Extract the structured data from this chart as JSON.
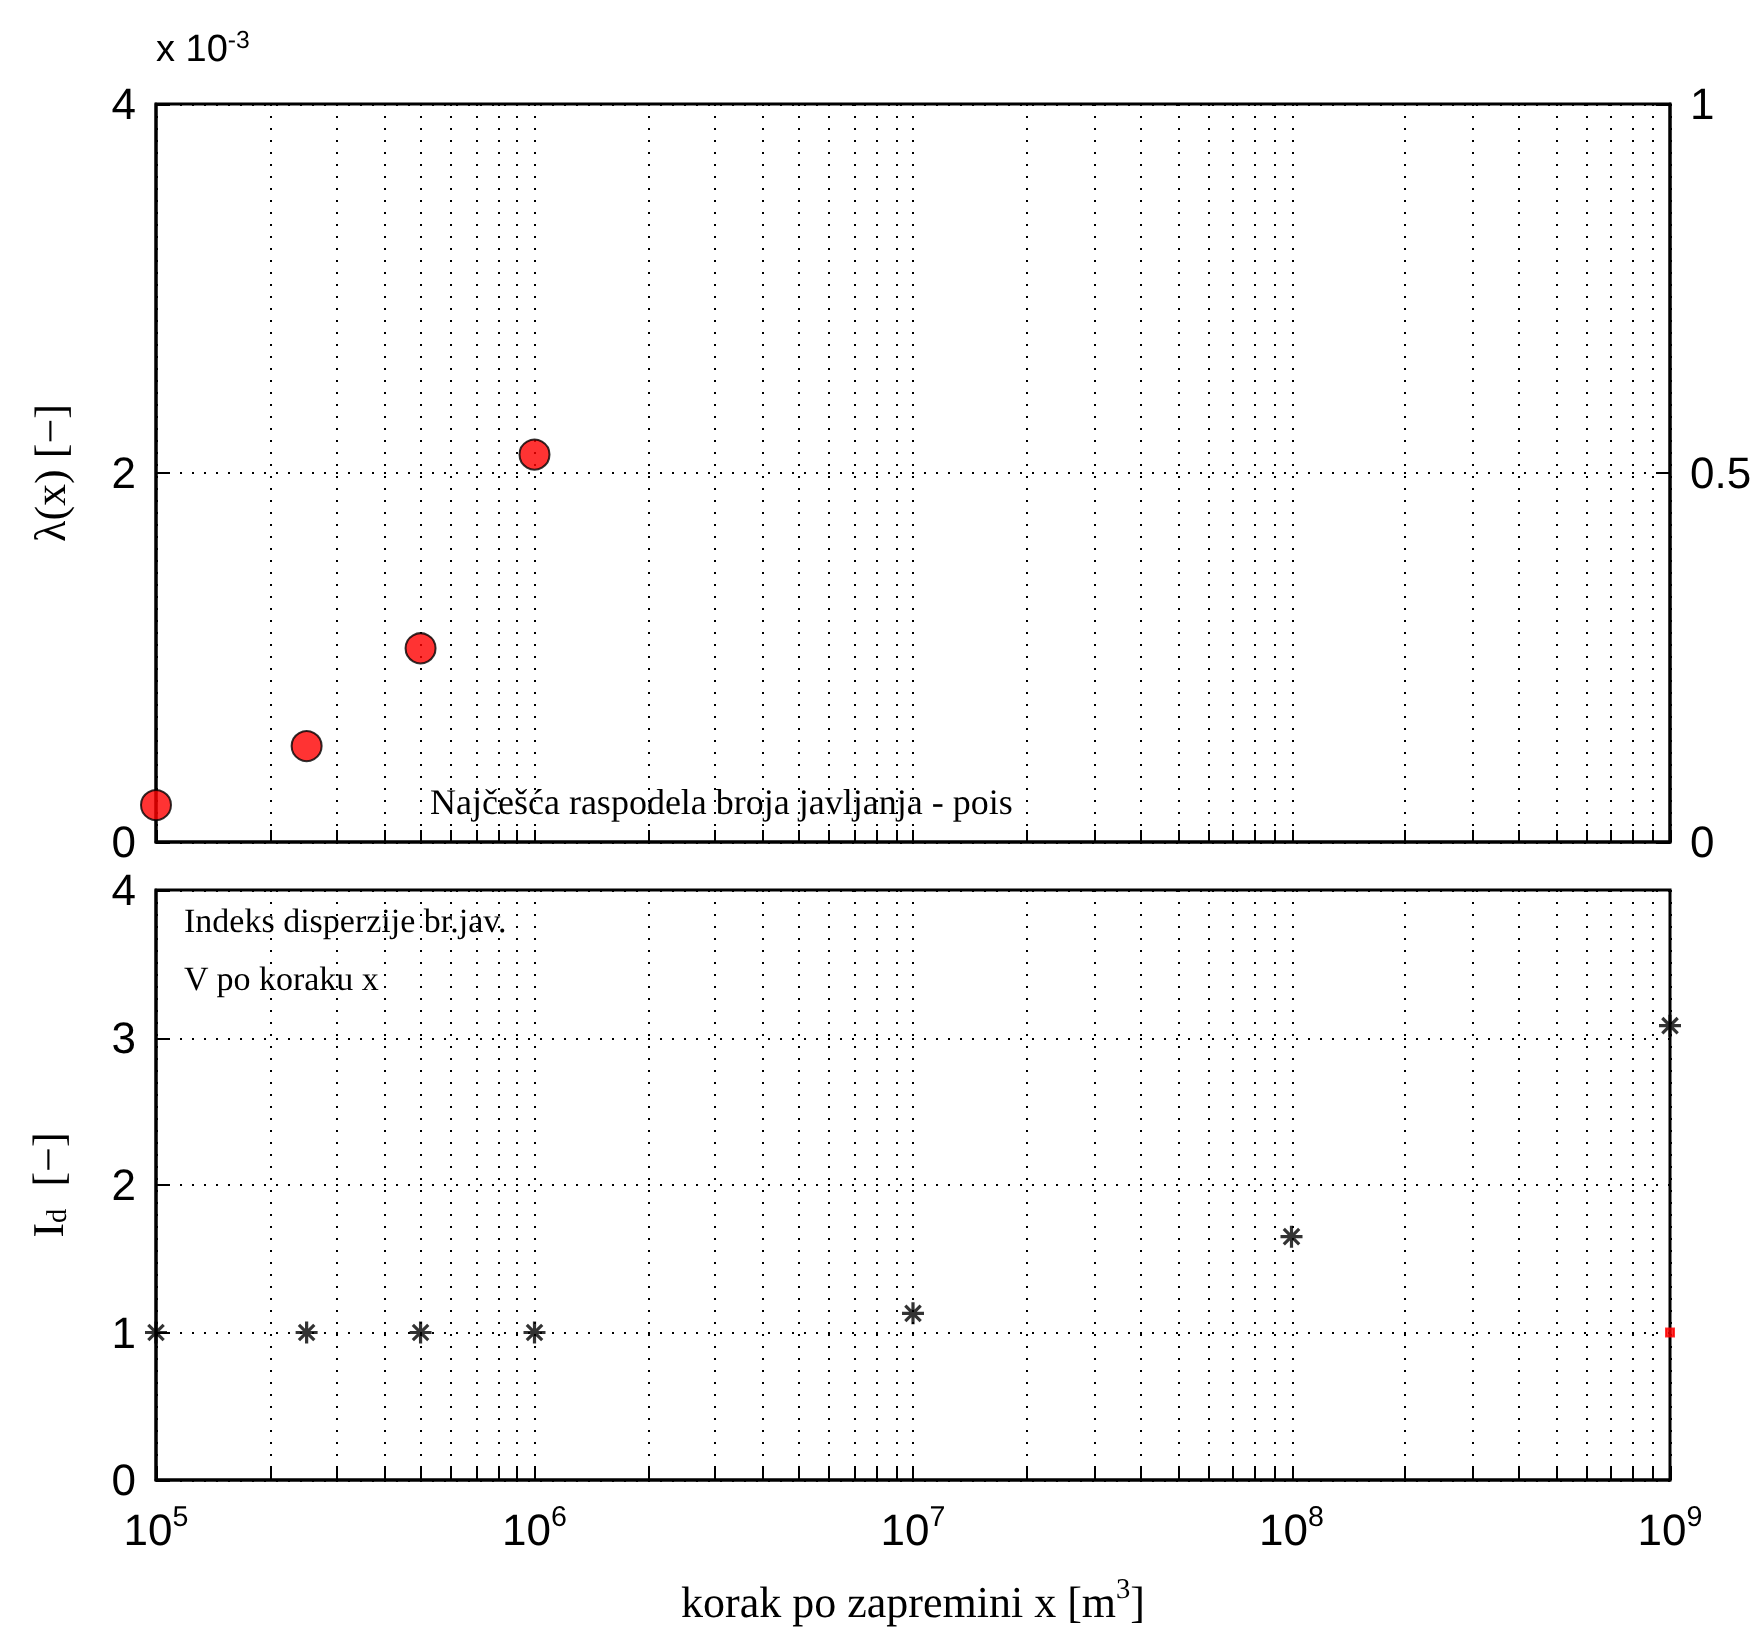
{
  "chart_data": [
    {
      "type": "scatter",
      "ylabel": "λ(x) [−]",
      "annotations": [
        "x 10$^{-3}$",
        "Najčešća raspodela broja javljanja - pois"
      ],
      "x": [
        100000,
        250000,
        500000,
        1000000
      ],
      "series": [
        {
          "color": "#ff0000",
          "values": [
            0.2,
            0.52,
            1.05,
            2.1
          ]
        }
      ],
      "marker": "circle",
      "log": "x",
      "grid": true,
      "tick_labels": "y",
      "xlim": [
        100000,
        1000000000
      ],
      "xticks": [
        {
          "value": 100000,
          "label": null
        },
        {
          "value": 200000,
          "label": null
        },
        {
          "value": 300000,
          "label": null
        },
        {
          "value": 400000,
          "label": null
        },
        {
          "value": 500000,
          "label": null
        },
        {
          "value": 600000,
          "label": null
        },
        {
          "value": 700000,
          "label": null
        },
        {
          "value": 800000,
          "label": null
        },
        {
          "value": 900000,
          "label": null
        },
        {
          "value": 1000000,
          "label": null
        },
        {
          "value": 2000000,
          "label": null
        },
        {
          "value": 3000000,
          "label": null
        },
        {
          "value": 4000000,
          "label": null
        },
        {
          "value": 5000000,
          "label": null
        },
        {
          "value": 6000000,
          "label": null
        },
        {
          "value": 7000000,
          "label": null
        },
        {
          "value": 8000000,
          "label": null
        },
        {
          "value": 9000000,
          "label": null
        },
        {
          "value": 10000000,
          "label": null
        },
        {
          "value": 20000000,
          "label": null
        },
        {
          "value": 30000000,
          "label": null
        },
        {
          "value": 40000000,
          "label": null
        },
        {
          "value": 50000000,
          "label": null
        },
        {
          "value": 60000000,
          "label": null
        },
        {
          "value": 70000000,
          "label": null
        },
        {
          "value": 80000000,
          "label": null
        },
        {
          "value": 90000000,
          "label": null
        },
        {
          "value": 100000000,
          "label": null
        },
        {
          "value": 200000000,
          "label": null
        },
        {
          "value": 300000000,
          "label": null
        },
        {
          "value": 400000000,
          "label": null
        },
        {
          "value": 500000000,
          "label": null
        },
        {
          "value": 600000000,
          "label": null
        },
        {
          "value": 700000000,
          "label": null
        },
        {
          "value": 800000000,
          "label": null
        },
        {
          "value": 900000000,
          "label": null
        },
        {
          "value": 1000000000,
          "label": null
        }
      ],
      "ylim": [
        0,
        4
      ],
      "yticks": [
        0,
        2,
        4
      ],
      "y2lim": [
        0,
        1
      ],
      "y2ticks": [
        0,
        0.5,
        1
      ]
    },
    {
      "type": "scatter",
      "xlabel": "korak po zapremini x [m$^{3}$]",
      "ylabel": "I$_{d}$  [−]",
      "annotations": [
        "Indeks disperzije br.jav.",
        "V po koraku x"
      ],
      "log": "x",
      "grid": true,
      "series": [
        {
          "color": "#000000",
          "marker": "cross",
          "x": [
            100000,
            250000,
            500000,
            1000000,
            10000000,
            100000000,
            1000000000
          ],
          "values": [
            1,
            1,
            1,
            1,
            1.13,
            1.65,
            3.08
          ]
        },
        {
          "color": "#ff0000",
          "marker": "square",
          "x": [
            1000000000
          ],
          "values": [
            1
          ]
        }
      ],
      "xlim": [
        100000,
        1000000000
      ],
      "xticks": [
        {
          "value": 100000,
          "label": "10$^{5}$"
        },
        {
          "value": 200000,
          "label": null
        },
        {
          "value": 300000,
          "label": null
        },
        {
          "value": 400000,
          "label": null
        },
        {
          "value": 500000,
          "label": null
        },
        {
          "value": 600000,
          "label": null
        },
        {
          "value": 700000,
          "label": null
        },
        {
          "value": 800000,
          "label": null
        },
        {
          "value": 900000,
          "label": null
        },
        {
          "value": 1000000,
          "label": "10$^{6}$"
        },
        {
          "value": 2000000,
          "label": null
        },
        {
          "value": 3000000,
          "label": null
        },
        {
          "value": 4000000,
          "label": null
        },
        {
          "value": 5000000,
          "label": null
        },
        {
          "value": 6000000,
          "label": null
        },
        {
          "value": 7000000,
          "label": null
        },
        {
          "value": 8000000,
          "label": null
        },
        {
          "value": 9000000,
          "label": null
        },
        {
          "value": 10000000,
          "label": "10$^{7}$"
        },
        {
          "value": 20000000,
          "label": null
        },
        {
          "value": 30000000,
          "label": null
        },
        {
          "value": 40000000,
          "label": null
        },
        {
          "value": 50000000,
          "label": null
        },
        {
          "value": 60000000,
          "label": null
        },
        {
          "value": 70000000,
          "label": null
        },
        {
          "value": 80000000,
          "label": null
        },
        {
          "value": 90000000,
          "label": null
        },
        {
          "value": 100000000,
          "label": "10$^{8}$"
        },
        {
          "value": 200000000,
          "label": null
        },
        {
          "value": 300000000,
          "label": null
        },
        {
          "value": 400000000,
          "label": null
        },
        {
          "value": 500000000,
          "label": null
        },
        {
          "value": 600000000,
          "label": null
        },
        {
          "value": 700000000,
          "label": null
        },
        {
          "value": 800000000,
          "label": null
        },
        {
          "value": 900000000,
          "label": null
        },
        {
          "value": 1000000000,
          "label": "10$^{9}$"
        }
      ],
      "ylim": [
        0,
        4
      ],
      "yticks": [
        0,
        1,
        2,
        3,
        4
      ]
    }
  ]
}
